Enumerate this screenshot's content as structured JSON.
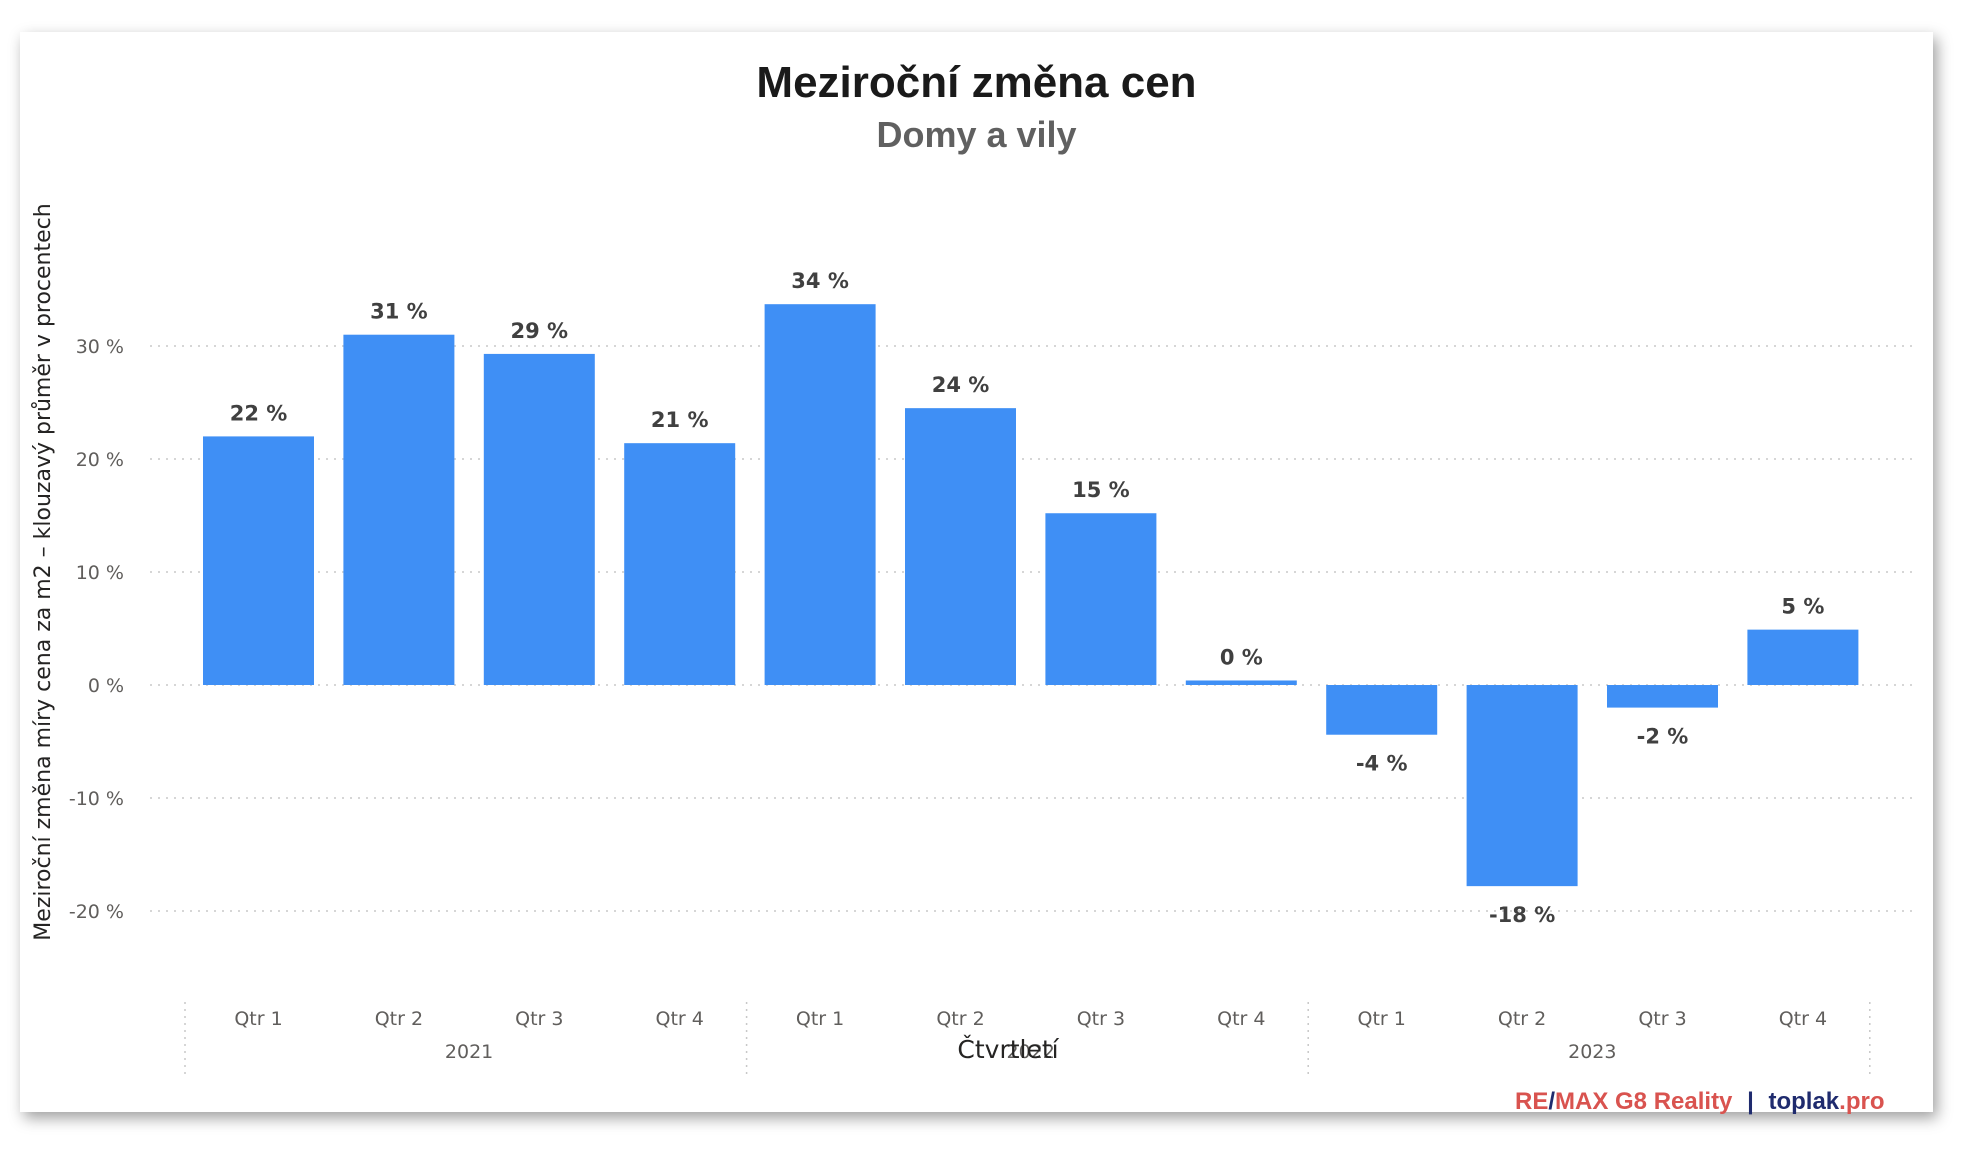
{
  "chart_data": {
    "type": "bar",
    "title": "Meziroční změna cen",
    "subtitle": "Domy a vily",
    "xlabel": "Čtvrtletí",
    "ylabel": "Meziroční změna míry cena za m2 – klouzavý průměr v procentech",
    "ylim": [
      -20,
      35
    ],
    "yticks": [
      30,
      20,
      10,
      0,
      -10,
      -20
    ],
    "ytick_labels": [
      "30 %",
      "20 %",
      "10 %",
      "0 %",
      "-10 %",
      "-20 %"
    ],
    "grid": true,
    "years": [
      "2021",
      "2022",
      "2023"
    ],
    "categories": [
      "Qtr 1",
      "Qtr 2",
      "Qtr 3",
      "Qtr 4",
      "Qtr 1",
      "Qtr 2",
      "Qtr 3",
      "Qtr 4",
      "Qtr 1",
      "Qtr 2",
      "Qtr 3",
      "Qtr 4"
    ],
    "values": [
      22,
      31,
      29.3,
      21.4,
      33.7,
      24.5,
      15.2,
      0.4,
      -4.4,
      -17.8,
      -2,
      4.9
    ],
    "data_labels": [
      "22 %",
      "31 %",
      "29 %",
      "21 %",
      "34 %",
      "24 %",
      "15 %",
      "0 %",
      "-4 %",
      "-18 %",
      "-2 %",
      "5 %"
    ],
    "bar_color": "#3f8ff5"
  },
  "branding": {
    "re": "RE",
    "slash": "/",
    "max": "MAX G8 Reality",
    "sep": "|",
    "toplak": "toplak",
    "pro": ".pro"
  },
  "colors": {
    "bar": "#3f8ff5",
    "brand_red": "#d9534f",
    "brand_navy": "#1f2b6e"
  }
}
